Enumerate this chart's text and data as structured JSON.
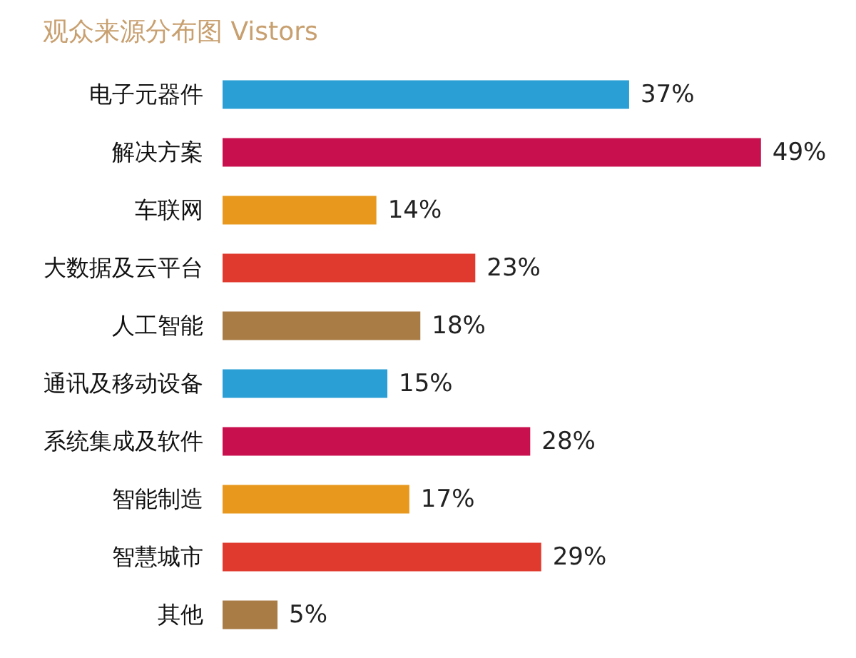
{
  "chart_data": {
    "type": "bar",
    "orientation": "horizontal",
    "title": "观众来源分布图 Vistors",
    "categories": [
      "电子元器件",
      "解决方案",
      "车联网",
      "大数据及云平台",
      "人工智能",
      "通讯及移动设备",
      "系统集成及软件",
      "智能制造",
      "智慧城市",
      "其他"
    ],
    "values": [
      37,
      49,
      14,
      23,
      18,
      15,
      28,
      17,
      29,
      5
    ],
    "colors": [
      "#2a9fd6",
      "#c8104e",
      "#e8981c",
      "#e03a2e",
      "#a97b45",
      "#2a9fd6",
      "#c8104e",
      "#e8981c",
      "#e03a2e",
      "#a97b45"
    ],
    "value_labels": [
      "37%",
      "49%",
      "14%",
      "23%",
      "18%",
      "15%",
      "28%",
      "17%",
      "29%",
      "5%"
    ],
    "grid": false
  }
}
